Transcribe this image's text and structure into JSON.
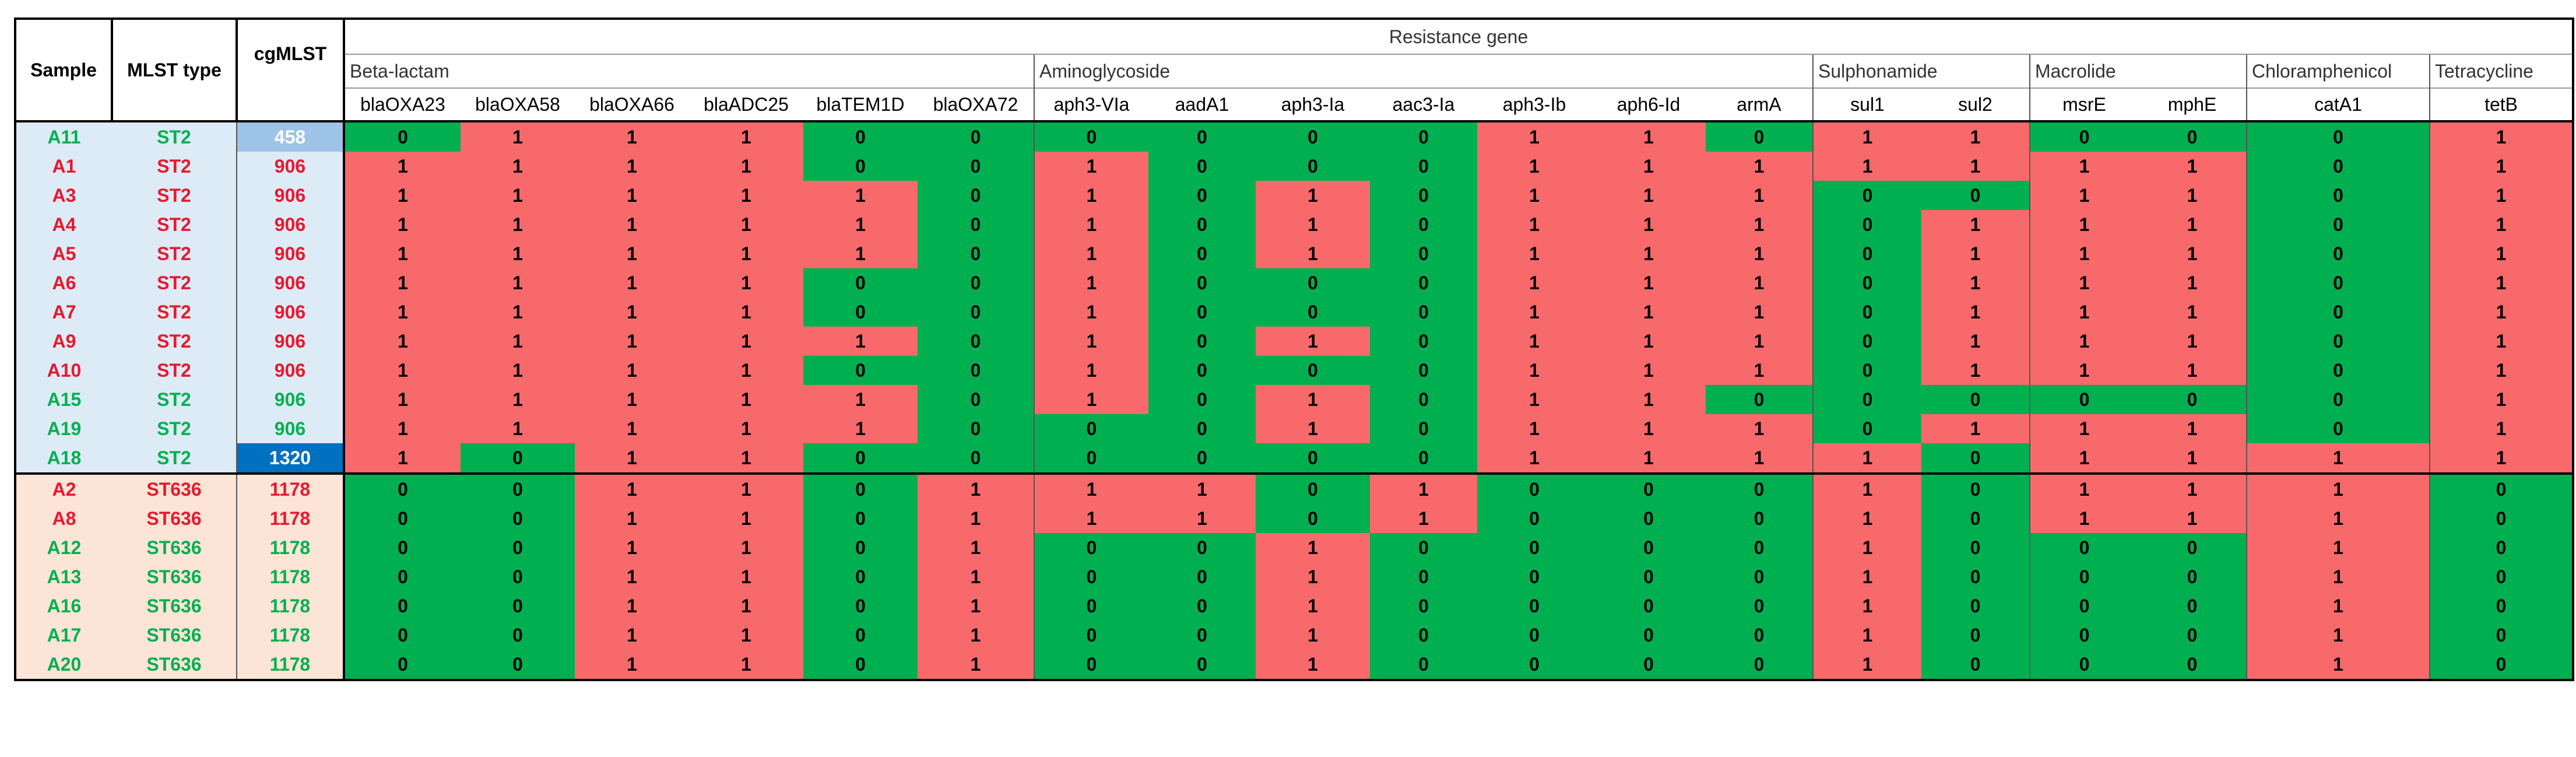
{
  "headers": {
    "sample": "Sample",
    "mlst": "MLST type",
    "cgmlst": "cgMLST",
    "resistance": "Resistance gene"
  },
  "classes": [
    {
      "name": "Beta-lactam",
      "genes": [
        "blaOXA23",
        "blaOXA58",
        "blaOXA66",
        "blaADC25",
        "blaTEM1D",
        "blaOXA72"
      ]
    },
    {
      "name": "Aminoglycoside",
      "genes": [
        "aph3-VIa",
        "aadA1",
        "aph3-Ia",
        "aac3-Ia",
        "aph3-Ib",
        "aph6-Id",
        "armA"
      ]
    },
    {
      "name": "Sulphonamide",
      "genes": [
        "sul1",
        "sul2"
      ]
    },
    {
      "name": "Macrolide",
      "genes": [
        "msrE",
        "mphE"
      ]
    },
    {
      "name": "Chloramphenicol",
      "genes": [
        "catA1"
      ]
    },
    {
      "name": "Tetracycline",
      "genes": [
        "tetB"
      ]
    }
  ],
  "rows": [
    {
      "sample": "A11",
      "mlst": "ST2",
      "cg": "458",
      "sc": "green",
      "cgStyle": "light",
      "group": "st2",
      "genes": [
        "0",
        "1",
        "1",
        "1",
        "0",
        "0",
        "0",
        "0",
        "0",
        "0",
        "1",
        "1",
        "0",
        "1",
        "1",
        "0",
        "0",
        "0",
        "1"
      ]
    },
    {
      "sample": "A1",
      "mlst": "ST2",
      "cg": "906",
      "sc": "red",
      "cgStyle": "red",
      "group": "st2",
      "genes": [
        "1",
        "1",
        "1",
        "1",
        "0",
        "0",
        "1",
        "0",
        "0",
        "0",
        "1",
        "1",
        "1",
        "1",
        "1",
        "1",
        "1",
        "0",
        "1"
      ]
    },
    {
      "sample": "A3",
      "mlst": "ST2",
      "cg": "906",
      "sc": "red",
      "cgStyle": "red",
      "group": "st2",
      "genes": [
        "1",
        "1",
        "1",
        "1",
        "1",
        "0",
        "1",
        "0",
        "1",
        "0",
        "1",
        "1",
        "1",
        "0",
        "0",
        "1",
        "1",
        "0",
        "1"
      ]
    },
    {
      "sample": "A4",
      "mlst": "ST2",
      "cg": "906",
      "sc": "red",
      "cgStyle": "red",
      "group": "st2",
      "genes": [
        "1",
        "1",
        "1",
        "1",
        "1",
        "0",
        "1",
        "0",
        "1",
        "0",
        "1",
        "1",
        "1",
        "0",
        "1",
        "1",
        "1",
        "0",
        "1"
      ]
    },
    {
      "sample": "A5",
      "mlst": "ST2",
      "cg": "906",
      "sc": "red",
      "cgStyle": "red",
      "group": "st2",
      "genes": [
        "1",
        "1",
        "1",
        "1",
        "1",
        "0",
        "1",
        "0",
        "1",
        "0",
        "1",
        "1",
        "1",
        "0",
        "1",
        "1",
        "1",
        "0",
        "1"
      ]
    },
    {
      "sample": "A6",
      "mlst": "ST2",
      "cg": "906",
      "sc": "red",
      "cgStyle": "red",
      "group": "st2",
      "genes": [
        "1",
        "1",
        "1",
        "1",
        "0",
        "0",
        "1",
        "0",
        "0",
        "0",
        "1",
        "1",
        "1",
        "0",
        "1",
        "1",
        "1",
        "0",
        "1"
      ]
    },
    {
      "sample": "A7",
      "mlst": "ST2",
      "cg": "906",
      "sc": "red",
      "cgStyle": "red",
      "group": "st2",
      "genes": [
        "1",
        "1",
        "1",
        "1",
        "0",
        "0",
        "1",
        "0",
        "0",
        "0",
        "1",
        "1",
        "1",
        "0",
        "1",
        "1",
        "1",
        "0",
        "1"
      ]
    },
    {
      "sample": "A9",
      "mlst": "ST2",
      "cg": "906",
      "sc": "red",
      "cgStyle": "red",
      "group": "st2",
      "genes": [
        "1",
        "1",
        "1",
        "1",
        "1",
        "0",
        "1",
        "0",
        "1",
        "0",
        "1",
        "1",
        "1",
        "0",
        "1",
        "1",
        "1",
        "0",
        "1"
      ]
    },
    {
      "sample": "A10",
      "mlst": "ST2",
      "cg": "906",
      "sc": "red",
      "cgStyle": "red",
      "group": "st2",
      "genes": [
        "1",
        "1",
        "1",
        "1",
        "0",
        "0",
        "1",
        "0",
        "0",
        "0",
        "1",
        "1",
        "1",
        "0",
        "1",
        "1",
        "1",
        "0",
        "1"
      ]
    },
    {
      "sample": "A15",
      "mlst": "ST2",
      "cg": "906",
      "sc": "green",
      "cgStyle": "green",
      "group": "st2",
      "genes": [
        "1",
        "1",
        "1",
        "1",
        "1",
        "0",
        "1",
        "0",
        "1",
        "0",
        "1",
        "1",
        "0",
        "0",
        "0",
        "0",
        "0",
        "0",
        "1"
      ]
    },
    {
      "sample": "A19",
      "mlst": "ST2",
      "cg": "906",
      "sc": "green",
      "cgStyle": "green",
      "group": "st2",
      "genes": [
        "1",
        "1",
        "1",
        "1",
        "1",
        "0",
        "0",
        "0",
        "1",
        "0",
        "1",
        "1",
        "1",
        "0",
        "1",
        "1",
        "1",
        "0",
        "1"
      ]
    },
    {
      "sample": "A18",
      "mlst": "ST2",
      "cg": "1320",
      "sc": "green",
      "cgStyle": "dark",
      "group": "st2",
      "genes": [
        "1",
        "0",
        "1",
        "1",
        "0",
        "0",
        "0",
        "0",
        "0",
        "0",
        "1",
        "1",
        "1",
        "1",
        "0",
        "1",
        "1",
        "1",
        "1"
      ]
    },
    {
      "sample": "A2",
      "mlst": "ST636",
      "cg": "1178",
      "sc": "red",
      "cgStyle": "red",
      "group": "st636",
      "genes": [
        "0",
        "0",
        "1",
        "1",
        "0",
        "1",
        "1",
        "1",
        "0",
        "1",
        "0",
        "0",
        "0",
        "1",
        "0",
        "1",
        "1",
        "1",
        "0"
      ]
    },
    {
      "sample": "A8",
      "mlst": "ST636",
      "cg": "1178",
      "sc": "red",
      "cgStyle": "red",
      "group": "st636",
      "genes": [
        "0",
        "0",
        "1",
        "1",
        "0",
        "1",
        "1",
        "1",
        "0",
        "1",
        "0",
        "0",
        "0",
        "1",
        "0",
        "1",
        "1",
        "1",
        "0"
      ]
    },
    {
      "sample": "A12",
      "mlst": "ST636",
      "cg": "1178",
      "sc": "green",
      "cgStyle": "green",
      "group": "st636",
      "genes": [
        "0",
        "0",
        "1",
        "1",
        "0",
        "1",
        "0",
        "0",
        "1",
        "0",
        "0",
        "0",
        "0",
        "1",
        "0",
        "0",
        "0",
        "1",
        "0"
      ]
    },
    {
      "sample": "A13",
      "mlst": "ST636",
      "cg": "1178",
      "sc": "green",
      "cgStyle": "green",
      "group": "st636",
      "genes": [
        "0",
        "0",
        "1",
        "1",
        "0",
        "1",
        "0",
        "0",
        "1",
        "0",
        "0",
        "0",
        "0",
        "1",
        "0",
        "0",
        "0",
        "1",
        "0"
      ]
    },
    {
      "sample": "A16",
      "mlst": "ST636",
      "cg": "1178",
      "sc": "green",
      "cgStyle": "green",
      "group": "st636",
      "genes": [
        "0",
        "0",
        "1",
        "1",
        "0",
        "1",
        "0",
        "0",
        "1",
        "0",
        "0",
        "0",
        "0",
        "1",
        "0",
        "0",
        "0",
        "1",
        "0"
      ]
    },
    {
      "sample": "A17",
      "mlst": "ST636",
      "cg": "1178",
      "sc": "green",
      "cgStyle": "green",
      "group": "st636",
      "genes": [
        "0",
        "0",
        "1",
        "1",
        "0",
        "1",
        "0",
        "0",
        "1",
        "0",
        "0",
        "0",
        "0",
        "1",
        "0",
        "0",
        "0",
        "1",
        "0"
      ]
    },
    {
      "sample": "A20",
      "mlst": "ST636",
      "cg": "1178",
      "sc": "green",
      "cgStyle": "green",
      "group": "st636",
      "genes": [
        "0",
        "0",
        "1",
        "1",
        "0",
        "1",
        "0",
        "0",
        "1",
        "0",
        "0",
        "0",
        "0",
        "1",
        "0",
        "0",
        "0",
        "1",
        "0"
      ]
    }
  ]
}
